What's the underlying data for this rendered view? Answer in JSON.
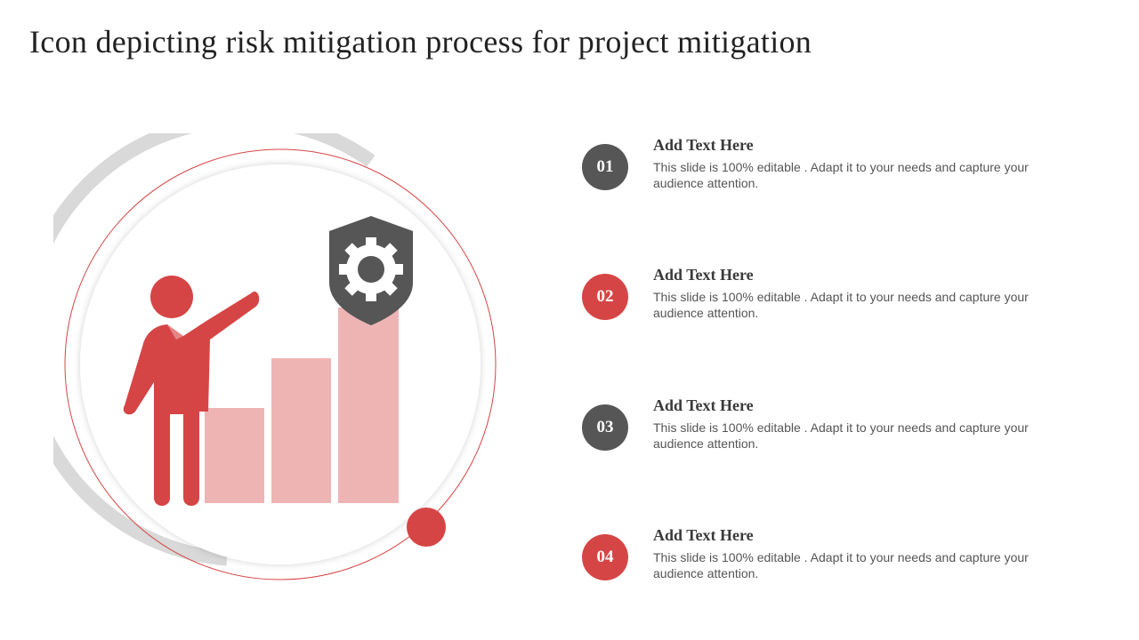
{
  "title": "Icon depicting risk mitigation process for project mitigation",
  "colors": {
    "accent_red": "#d64545",
    "dark_gray": "#565656",
    "bar_pink": "#eeb4b4",
    "ring_gray": "#d9d9d9"
  },
  "illustration": {
    "icons": [
      "person-pointing-icon",
      "bar-chart-icon",
      "shield-gear-icon"
    ]
  },
  "steps": [
    {
      "number": "01",
      "heading": "Add Text Here",
      "body": "This slide is 100% editable . Adapt it to your needs and capture your audience attention.",
      "color": "#565656"
    },
    {
      "number": "02",
      "heading": "Add Text Here",
      "body": "This slide is 100% editable . Adapt it to your needs and capture your audience attention.",
      "color": "#d64545"
    },
    {
      "number": "03",
      "heading": "Add Text Here",
      "body": "This slide is 100% editable . Adapt it to your needs and capture your audience attention.",
      "color": "#565656"
    },
    {
      "number": "04",
      "heading": "Add Text Here",
      "body": "This slide is 100% editable . Adapt it to your needs and capture your audience attention.",
      "color": "#d64545"
    }
  ]
}
